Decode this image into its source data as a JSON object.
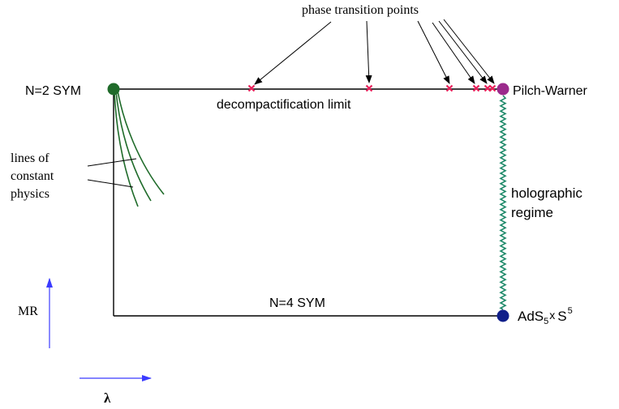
{
  "labels": {
    "phase_transition_points": "phase transition points",
    "n2_sym": "N=2 SYM",
    "pilch_warner": "Pilch-Warner",
    "decompactification_limit": "decompactification limit",
    "lines_of_constant_physics": [
      "lines of",
      "constant",
      "physics"
    ],
    "holographic_regime": [
      "holographic",
      "regime"
    ],
    "n4_sym": "N=4 SYM",
    "ads_base": "AdS",
    "ads_sub": "5",
    "times": "x",
    "sphere_base": "S",
    "sphere_sup": "5",
    "axis_mr": "MR",
    "axis_lambda": "λ"
  },
  "colors": {
    "frame": "#000000",
    "n2_point": "#1f6b2a",
    "pilch_warner_point": "#9b2a8c",
    "ads_point": "#101f8a",
    "transition_marker": "#e8205a",
    "holographic_wiggle": "#1f8a6a",
    "constant_physics_lines": "#1f6b2a",
    "axis_arrows": "#3b3bff"
  },
  "phase_transition_marker_count": 6
}
